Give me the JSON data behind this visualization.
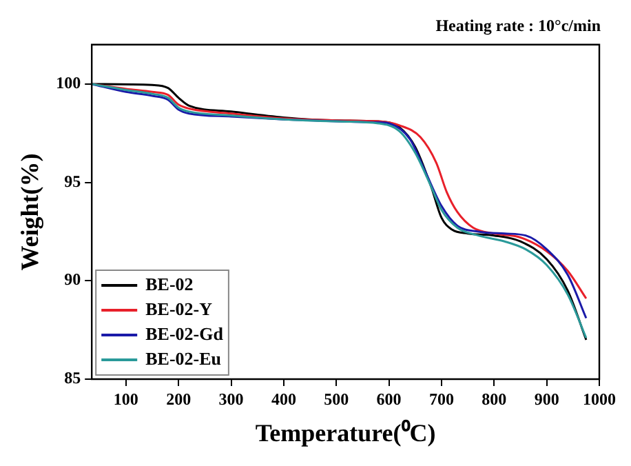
{
  "chart_data": {
    "type": "line",
    "title": "Heating rate : 10°c/min",
    "xlabel": "Temperature(⁰C)",
    "ylabel": "Weight(%)",
    "xlim": [
      35,
      1000
    ],
    "xticks": [
      100,
      200,
      300,
      400,
      500,
      600,
      700,
      800,
      900,
      1000
    ],
    "ylim": [
      85,
      102
    ],
    "yticks": [
      85,
      90,
      95,
      100
    ],
    "grid": false,
    "legend": "bottom left",
    "marker": "none",
    "line_style": "solid",
    "series": [
      {
        "name": "BE-02",
        "color": "#000000",
        "x": [
          35,
          150,
          180,
          200,
          220,
          300,
          400,
          500,
          580,
          620,
          650,
          680,
          700,
          720,
          750,
          800,
          850,
          900,
          940,
          975
        ],
        "values": [
          100,
          99.95,
          99.8,
          99.3,
          98.9,
          98.6,
          98.3,
          98.15,
          98.1,
          97.8,
          96.8,
          94.8,
          93.2,
          92.6,
          92.4,
          92.3,
          92.0,
          91.1,
          89.5,
          87.0
        ]
      },
      {
        "name": "BE-02-Y",
        "color": "#e8202a",
        "x": [
          35,
          100,
          150,
          180,
          200,
          220,
          300,
          400,
          500,
          580,
          620,
          660,
          690,
          710,
          730,
          760,
          800,
          850,
          900,
          940,
          975
        ],
        "values": [
          100,
          99.75,
          99.6,
          99.45,
          98.95,
          98.75,
          98.5,
          98.25,
          98.15,
          98.1,
          97.9,
          97.3,
          96,
          94.5,
          93.5,
          92.7,
          92.4,
          92.2,
          91.5,
          90.5,
          89.1
        ]
      },
      {
        "name": "BE-02-Gd",
        "color": "#1a1aa8",
        "x": [
          35,
          100,
          150,
          180,
          200,
          220,
          300,
          400,
          500,
          580,
          600,
          640,
          670,
          700,
          730,
          770,
          820,
          860,
          900,
          940,
          975
        ],
        "values": [
          100,
          99.6,
          99.4,
          99.2,
          98.7,
          98.5,
          98.35,
          98.2,
          98.1,
          98.05,
          98.0,
          97.2,
          95.5,
          93.8,
          92.8,
          92.5,
          92.4,
          92.3,
          91.6,
          90.3,
          88.1
        ]
      },
      {
        "name": "BE-02-Eu",
        "color": "#2a9a9a",
        "x": [
          35,
          100,
          150,
          180,
          200,
          220,
          300,
          400,
          500,
          580,
          620,
          650,
          680,
          700,
          730,
          770,
          820,
          860,
          900,
          940,
          975
        ],
        "values": [
          100,
          99.7,
          99.5,
          99.3,
          98.8,
          98.6,
          98.4,
          98.2,
          98.1,
          98.0,
          97.6,
          96.5,
          94.8,
          93.6,
          92.7,
          92.3,
          92.0,
          91.6,
          90.8,
          89.3,
          87.1
        ]
      }
    ]
  }
}
